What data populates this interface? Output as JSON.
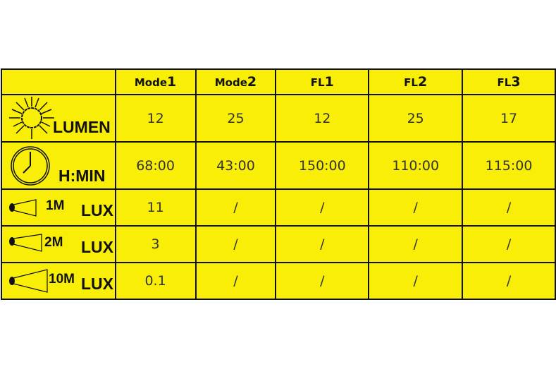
{
  "headers": [
    {
      "text": "Mode",
      "num": "1"
    },
    {
      "text": "Mode",
      "num": "2"
    },
    {
      "text": "FL",
      "num": "1"
    },
    {
      "text": "FL",
      "num": "2"
    },
    {
      "text": "FL",
      "num": "3"
    }
  ],
  "rows": [
    {
      "label": "LUMEN",
      "icon": "sun-icon",
      "values": [
        "12",
        "25",
        "12",
        "25",
        "17"
      ]
    },
    {
      "label": "H:MIN",
      "icon": "clock-icon",
      "values": [
        "68:00",
        "43:00",
        "150:00",
        "110:00",
        "115:00"
      ]
    },
    {
      "label": "LUX",
      "distance": "1M",
      "icon": "flashlight-beam-icon",
      "values": [
        "11",
        "/",
        "/",
        "/",
        "/"
      ]
    },
    {
      "label": "LUX",
      "distance": "2M",
      "icon": "flashlight-beam-icon",
      "values": [
        "3",
        "/",
        "/",
        "/",
        "/"
      ]
    },
    {
      "label": "LUX",
      "distance": "10M",
      "icon": "flashlight-beam-icon",
      "values": [
        "0.1",
        "/",
        "/",
        "/",
        "/"
      ]
    }
  ],
  "colors": {
    "background": "#f8ee08",
    "border": "#111111"
  }
}
